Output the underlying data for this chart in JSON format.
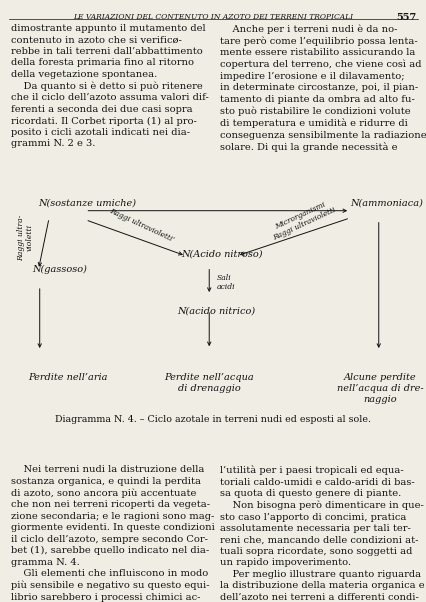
{
  "page_title": "LE VARIAZIONI DEL CONTENUTO IN AZOTO DEI TERRENI TROPICALI",
  "page_number": "557",
  "diagram_caption": "Diagramma N. 4. – Ciclo azotale in terreni nudi ed esposti al sole.",
  "bg_color": "#f0ede4",
  "text_color": "#111111"
}
